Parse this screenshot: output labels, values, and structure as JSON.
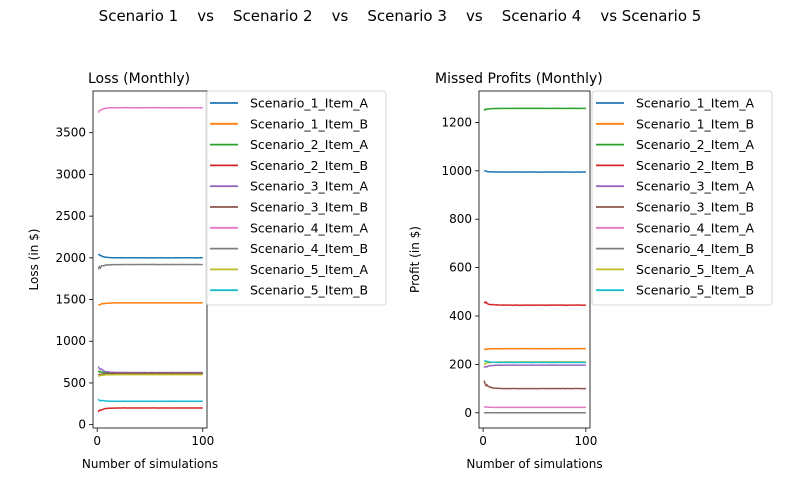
{
  "figure": {
    "suptitle": "Scenario 1    vs    Scenario 2    vs    Scenario 3    vs    Scenario 4    vs Scenario 5"
  },
  "chart_data": [
    {
      "type": "line",
      "title": "Loss (Monthly)",
      "xlabel": "Number of simulations",
      "ylabel": "Loss (in $)",
      "xlim": [
        -4,
        104
      ],
      "ylim": [
        -40,
        4000
      ],
      "xticks": [
        0,
        100
      ],
      "yticks": [
        0,
        500,
        1000,
        1500,
        2000,
        2500,
        3000,
        3500
      ],
      "grid": false,
      "legend": "outside-right",
      "series": [
        {
          "name": "Scenario_1_Item_A",
          "color": "#1f77b4",
          "final": 2000,
          "start": 2040,
          "noise": 15
        },
        {
          "name": "Scenario_1_Item_B",
          "color": "#ff7f0e",
          "final": 1460,
          "start": 1430,
          "noise": 12
        },
        {
          "name": "Scenario_2_Item_A",
          "color": "#2ca02c",
          "final": 620,
          "start": 640,
          "noise": 8
        },
        {
          "name": "Scenario_2_Item_B",
          "color": "#d62728",
          "final": 200,
          "start": 160,
          "noise": 15
        },
        {
          "name": "Scenario_3_Item_A",
          "color": "#9467bd",
          "final": 625,
          "start": 700,
          "noise": 20
        },
        {
          "name": "Scenario_3_Item_B",
          "color": "#8c564b",
          "final": 615,
          "start": 590,
          "noise": 10
        },
        {
          "name": "Scenario_4_Item_A",
          "color": "#e377c2",
          "final": 3800,
          "start": 3760,
          "noise": 20
        },
        {
          "name": "Scenario_4_Item_B",
          "color": "#7f7f7f",
          "final": 1920,
          "start": 1870,
          "noise": 20
        },
        {
          "name": "Scenario_5_Item_A",
          "color": "#bcbd22",
          "final": 600,
          "start": 580,
          "noise": 8
        },
        {
          "name": "Scenario_5_Item_B",
          "color": "#17becf",
          "final": 280,
          "start": 300,
          "noise": 10
        }
      ]
    },
    {
      "type": "line",
      "title": "Missed Profits (Monthly)",
      "xlabel": "Number of simulations",
      "ylabel": "Profit (in $)",
      "xlim": [
        -4,
        104
      ],
      "ylim": [
        -63,
        1330
      ],
      "xticks": [
        0,
        100
      ],
      "yticks": [
        0,
        200,
        400,
        600,
        800,
        1000,
        1200
      ],
      "grid": false,
      "legend": "outside-right",
      "series": [
        {
          "name": "Scenario_1_Item_A",
          "color": "#1f77b4",
          "final": 995,
          "start": 1000,
          "noise": 3
        },
        {
          "name": "Scenario_1_Item_B",
          "color": "#ff7f0e",
          "final": 265,
          "start": 262,
          "noise": 2
        },
        {
          "name": "Scenario_2_Item_A",
          "color": "#2ca02c",
          "final": 1258,
          "start": 1252,
          "noise": 4
        },
        {
          "name": "Scenario_2_Item_B",
          "color": "#d62728",
          "final": 445,
          "start": 460,
          "noise": 8
        },
        {
          "name": "Scenario_3_Item_A",
          "color": "#9467bd",
          "final": 197,
          "start": 185,
          "noise": 5
        },
        {
          "name": "Scenario_3_Item_B",
          "color": "#8c564b",
          "final": 100,
          "start": 125,
          "noise": 8
        },
        {
          "name": "Scenario_4_Item_A",
          "color": "#e377c2",
          "final": 22,
          "start": 25,
          "noise": 1
        },
        {
          "name": "Scenario_4_Item_B",
          "color": "#7f7f7f",
          "final": 0,
          "start": 0,
          "noise": 0
        },
        {
          "name": "Scenario_5_Item_A",
          "color": "#bcbd22",
          "final": 210,
          "start": 200,
          "noise": 4
        },
        {
          "name": "Scenario_5_Item_B",
          "color": "#17becf",
          "final": 208,
          "start": 215,
          "noise": 4
        }
      ]
    }
  ]
}
